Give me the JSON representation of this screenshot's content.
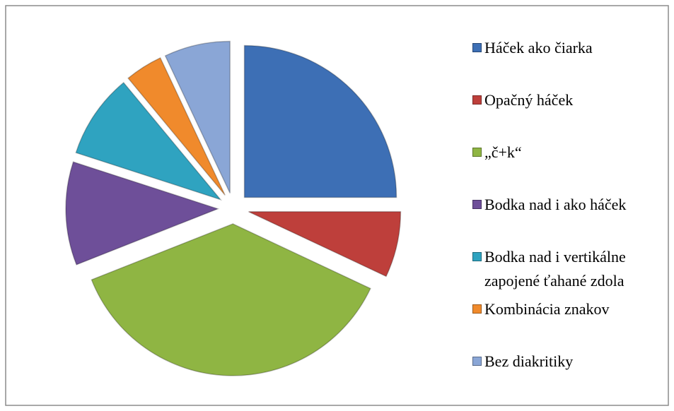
{
  "chart_data": {
    "type": "pie",
    "categories": [
      "Háček ako čiarka",
      "Opačný háček",
      "„č+k“",
      "Bodka nad i ako háček",
      "Bodka nad i  vertikálne zapojené ťahané zdola",
      "Kombinácia znakov",
      "Bez diakritiky"
    ],
    "values": [
      25,
      7,
      37,
      11,
      9,
      4,
      7
    ],
    "colors": [
      "#3d6fb5",
      "#be3f3b",
      "#8fb543",
      "#6e4f99",
      "#2fa3c0",
      "#f08a2c",
      "#8aa6d6"
    ],
    "legend": "right"
  }
}
